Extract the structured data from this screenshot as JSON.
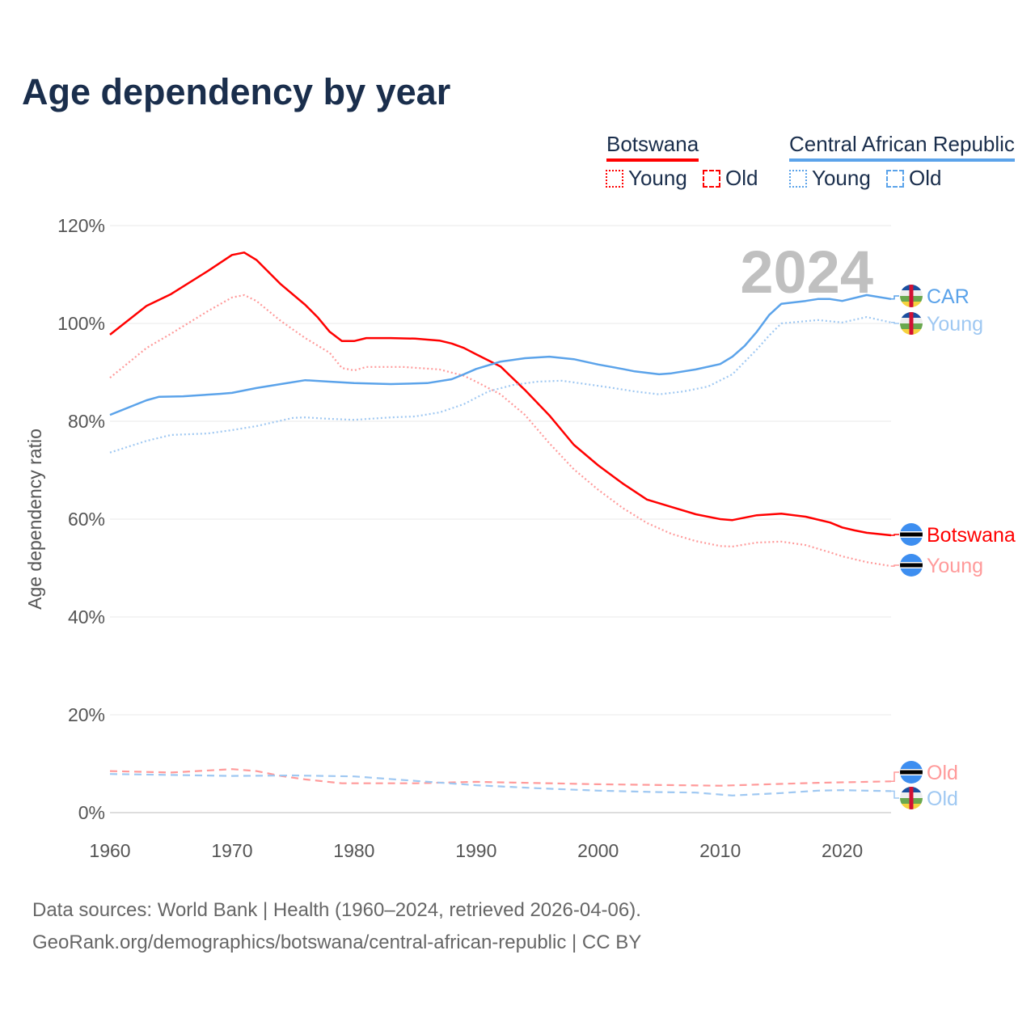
{
  "title": "Age dependency by year",
  "legend": {
    "countries": [
      {
        "name": "Botswana",
        "color": "#ff0000",
        "young": "Young",
        "old": "Old"
      },
      {
        "name": "Central African Republic",
        "color": "#5ba3ea",
        "young": "Young",
        "old": "Old"
      }
    ]
  },
  "year_watermark": "2024",
  "end_labels": {
    "car_total": "CAR",
    "car_young": "Young",
    "car_old": "Old",
    "bwa_total": "Botswana",
    "bwa_young": "Young",
    "bwa_old": "Old"
  },
  "source": {
    "line1": "Data sources: World Bank | Health (1960–2024, retrieved 2026-04-06).",
    "line2": "GeoRank.org/demographics/botswana/central-african-republic | CC BY"
  },
  "chart_data": {
    "type": "line",
    "title": "Age dependency by year",
    "xlabel": "",
    "ylabel": "Age dependency ratio",
    "xlim": [
      1960,
      2024
    ],
    "ylim": [
      0,
      120
    ],
    "xticks": [
      "1960",
      "1970",
      "1980",
      "1990",
      "2000",
      "2010",
      "2020"
    ],
    "yticks": [
      "0%",
      "20%",
      "40%",
      "60%",
      "80%",
      "100%",
      "120%"
    ],
    "grid": true,
    "series": [
      {
        "name": "Botswana",
        "style": "solid",
        "color": "#ff0000",
        "x": [
          1960,
          1963,
          1965,
          1968,
          1970,
          1971,
          1972,
          1974,
          1976,
          1977,
          1978,
          1979,
          1980,
          1981,
          1983,
          1985,
          1987,
          1988,
          1989,
          1990,
          1992,
          1994,
          1996,
          1998,
          2000,
          2002,
          2004,
          2006,
          2008,
          2010,
          2011,
          2013,
          2015,
          2017,
          2019,
          2020,
          2021,
          2022,
          2024
        ],
        "y": [
          97.7,
          103.6,
          106,
          110.7,
          114,
          114.5,
          113,
          108,
          103.8,
          101.3,
          98.3,
          96.4,
          96.4,
          97,
          97,
          96.9,
          96.5,
          95.9,
          95,
          93.7,
          91.2,
          86.4,
          81.2,
          75.2,
          71,
          67.3,
          64,
          62.5,
          61,
          60,
          59.8,
          60.8,
          61.1,
          60.5,
          59.3,
          58.3,
          57.7,
          57.2,
          56.7
        ]
      },
      {
        "name": "Botswana Young",
        "style": "dotted",
        "color": "#ff9a9a",
        "x": [
          1960,
          1963,
          1965,
          1968,
          1970,
          1971,
          1972,
          1974,
          1976,
          1978,
          1979,
          1980,
          1981,
          1984,
          1987,
          1989,
          1990,
          1992,
          1994,
          1996,
          1998,
          2000,
          2002,
          2004,
          2006,
          2008,
          2010,
          2011,
          2013,
          2015,
          2017,
          2019,
          2020,
          2022,
          2024
        ],
        "y": [
          88.9,
          95,
          97.9,
          102.5,
          105.3,
          105.8,
          104.6,
          100.5,
          97,
          94,
          90.9,
          90.4,
          91.1,
          91.1,
          90.6,
          89.3,
          88.1,
          85.5,
          81.3,
          75.5,
          70.2,
          66,
          62.3,
          59.2,
          57,
          55.5,
          54.5,
          54.4,
          55.2,
          55.4,
          54.7,
          53.2,
          52.4,
          51.2,
          50.4
        ]
      },
      {
        "name": "Botswana Old",
        "style": "dashed",
        "color": "#ff9a9a",
        "x": [
          1960,
          1965,
          1970,
          1972,
          1974,
          1976,
          1979,
          1985,
          1990,
          2000,
          2010,
          2018,
          2024
        ],
        "y": [
          8.5,
          8.2,
          8.9,
          8.5,
          7.5,
          6.8,
          6,
          6,
          6.3,
          5.8,
          5.5,
          6.1,
          6.4
        ]
      },
      {
        "name": "Central African Republic",
        "style": "solid",
        "color": "#5ba3ea",
        "x": [
          1960,
          1963,
          1964,
          1966,
          1969,
          1970,
          1972,
          1974,
          1976,
          1978,
          1980,
          1983,
          1986,
          1988,
          1989,
          1990,
          1992,
          1994,
          1996,
          1998,
          2000,
          2002,
          2003,
          2005,
          2006,
          2008,
          2010,
          2011,
          2012,
          2013,
          2014,
          2015,
          2017,
          2018,
          2019,
          2020,
          2022,
          2024
        ],
        "y": [
          81.3,
          84.3,
          85,
          85.1,
          85.6,
          85.8,
          86.8,
          87.6,
          88.4,
          88.1,
          87.8,
          87.6,
          87.8,
          88.6,
          89.6,
          90.7,
          92.2,
          92.9,
          93.2,
          92.7,
          91.6,
          90.7,
          90.2,
          89.6,
          89.8,
          90.6,
          91.7,
          93.2,
          95.4,
          98.3,
          101.7,
          104,
          104.6,
          105,
          105,
          104.6,
          105.8,
          105
        ]
      },
      {
        "name": "Central African Republic Young",
        "style": "dotted",
        "color": "#9fc8f2",
        "x": [
          1960,
          1963,
          1965,
          1968,
          1970,
          1972,
          1975,
          1976,
          1978,
          1980,
          1983,
          1985,
          1987,
          1989,
          1991,
          1993,
          1995,
          1997,
          1999,
          2001,
          2003,
          2005,
          2007,
          2009,
          2011,
          2013,
          2014,
          2015,
          2018,
          2020,
          2022,
          2024
        ],
        "y": [
          73.6,
          76,
          77.2,
          77.5,
          78.2,
          79,
          80.7,
          80.8,
          80.5,
          80.3,
          80.8,
          81,
          81.8,
          83.5,
          86.1,
          87.4,
          88.1,
          88.3,
          87.6,
          86.9,
          86.1,
          85.5,
          86.1,
          87.1,
          89.6,
          94.7,
          97.5,
          100,
          100.7,
          100.2,
          101.3,
          100.2
        ]
      },
      {
        "name": "Central African Republic Old",
        "style": "dashed",
        "color": "#9fc8f2",
        "x": [
          1960,
          1970,
          1975,
          1980,
          1985,
          1990,
          1995,
          2000,
          2005,
          2008,
          2011,
          2015,
          2018,
          2020,
          2024
        ],
        "y": [
          7.9,
          7.5,
          7.6,
          7.4,
          6.5,
          5.6,
          5,
          4.5,
          4.2,
          4.1,
          3.5,
          4,
          4.5,
          4.6,
          4.4
        ]
      }
    ]
  }
}
